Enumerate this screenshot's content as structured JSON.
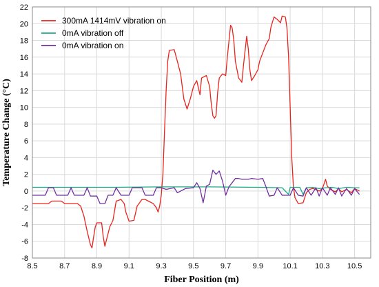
{
  "chart_data": {
    "type": "line",
    "title": "",
    "xlabel": "Fiber Position (m)",
    "ylabel": "Temperature Change (°C)",
    "xlim": [
      8.5,
      10.6
    ],
    "ylim": [
      -8,
      22
    ],
    "xticks": [
      "8.5",
      "8.7",
      "8.9",
      "9.1",
      "9.3",
      "9.5",
      "9.7",
      "9.9",
      "10.1",
      "10.3",
      "10.5"
    ],
    "yticks": [
      "-8",
      "-6",
      "-4",
      "-2",
      "0",
      "2",
      "4",
      "6",
      "8",
      "10",
      "12",
      "14",
      "16",
      "18",
      "20",
      "22"
    ],
    "grid": true,
    "legend_position": "top-left",
    "series": [
      {
        "name": "300mA 1414mV vibration on",
        "color": "#e8231c",
        "points": [
          [
            8.5,
            -1.5
          ],
          [
            8.6,
            -1.5
          ],
          [
            8.62,
            -1.2
          ],
          [
            8.68,
            -1.2
          ],
          [
            8.7,
            -1.5
          ],
          [
            8.78,
            -1.5
          ],
          [
            8.8,
            -1.8
          ],
          [
            8.82,
            -3.0
          ],
          [
            8.84,
            -4.8
          ],
          [
            8.86,
            -6.4
          ],
          [
            8.87,
            -6.8
          ],
          [
            8.88,
            -5.5
          ],
          [
            8.89,
            -4.3
          ],
          [
            8.9,
            -3.8
          ],
          [
            8.93,
            -3.8
          ],
          [
            8.94,
            -5.5
          ],
          [
            8.95,
            -6.6
          ],
          [
            8.96,
            -5.8
          ],
          [
            8.98,
            -4.3
          ],
          [
            9.0,
            -3.5
          ],
          [
            9.02,
            -1.2
          ],
          [
            9.05,
            -1.0
          ],
          [
            9.07,
            -1.5
          ],
          [
            9.08,
            -2.5
          ],
          [
            9.1,
            -3.6
          ],
          [
            9.13,
            -3.5
          ],
          [
            9.15,
            -1.8
          ],
          [
            9.18,
            -1.0
          ],
          [
            9.2,
            -1.0
          ],
          [
            9.22,
            -1.2
          ],
          [
            9.25,
            -1.5
          ],
          [
            9.27,
            -2.0
          ],
          [
            9.28,
            -2.5
          ],
          [
            9.29,
            -1.8
          ],
          [
            9.3,
            -0.5
          ],
          [
            9.31,
            2.0
          ],
          [
            9.32,
            7.0
          ],
          [
            9.33,
            12.0
          ],
          [
            9.34,
            15.5
          ],
          [
            9.35,
            16.8
          ],
          [
            9.38,
            16.9
          ],
          [
            9.4,
            15.5
          ],
          [
            9.42,
            14.0
          ],
          [
            9.44,
            11.0
          ],
          [
            9.46,
            9.8
          ],
          [
            9.48,
            11.0
          ],
          [
            9.5,
            12.5
          ],
          [
            9.52,
            13.2
          ],
          [
            9.54,
            11.5
          ],
          [
            9.55,
            13.5
          ],
          [
            9.58,
            13.8
          ],
          [
            9.6,
            12.5
          ],
          [
            9.61,
            10.5
          ],
          [
            9.62,
            9.0
          ],
          [
            9.63,
            8.7
          ],
          [
            9.64,
            9.0
          ],
          [
            9.65,
            11.8
          ],
          [
            9.66,
            13.5
          ],
          [
            9.68,
            14.0
          ],
          [
            9.7,
            13.8
          ],
          [
            9.71,
            16.0
          ],
          [
            9.73,
            19.8
          ],
          [
            9.74,
            19.5
          ],
          [
            9.75,
            18.0
          ],
          [
            9.76,
            15.5
          ],
          [
            9.78,
            13.5
          ],
          [
            9.8,
            13.0
          ],
          [
            9.81,
            15.0
          ],
          [
            9.83,
            18.5
          ],
          [
            9.84,
            17.0
          ],
          [
            9.85,
            14.5
          ],
          [
            9.86,
            13.2
          ],
          [
            9.88,
            13.8
          ],
          [
            9.9,
            14.5
          ],
          [
            9.91,
            15.5
          ],
          [
            9.93,
            16.5
          ],
          [
            9.95,
            17.5
          ],
          [
            9.97,
            18.2
          ],
          [
            9.98,
            19.5
          ],
          [
            9.99,
            20.2
          ],
          [
            10.0,
            20.8
          ],
          [
            10.02,
            20.5
          ],
          [
            10.04,
            20.1
          ],
          [
            10.05,
            20.9
          ],
          [
            10.07,
            20.8
          ],
          [
            10.08,
            19.5
          ],
          [
            10.09,
            16.0
          ],
          [
            10.1,
            10.0
          ],
          [
            10.11,
            4.0
          ],
          [
            10.12,
            0.5
          ],
          [
            10.13,
            -0.8
          ],
          [
            10.15,
            -1.5
          ],
          [
            10.18,
            -1.4
          ],
          [
            10.2,
            -0.2
          ],
          [
            10.22,
            0.2
          ],
          [
            10.24,
            0.3
          ],
          [
            10.26,
            0.2
          ],
          [
            10.28,
            0.0
          ],
          [
            10.3,
            0.3
          ],
          [
            10.32,
            1.4
          ],
          [
            10.33,
            0.6
          ],
          [
            10.35,
            0.2
          ],
          [
            10.38,
            -0.1
          ],
          [
            10.4,
            0.3
          ],
          [
            10.42,
            -0.1
          ],
          [
            10.45,
            0.2
          ],
          [
            10.48,
            -0.2
          ],
          [
            10.5,
            0.3
          ],
          [
            10.53,
            0.0
          ]
        ]
      },
      {
        "name": "0mA vibration off",
        "color": "#1aaa85",
        "points": [
          [
            8.5,
            0.45
          ],
          [
            9.0,
            0.45
          ],
          [
            9.3,
            0.5
          ],
          [
            9.6,
            0.5
          ],
          [
            9.9,
            0.45
          ],
          [
            10.05,
            0.4
          ],
          [
            10.09,
            -0.4
          ],
          [
            10.1,
            0.45
          ],
          [
            10.16,
            0.45
          ],
          [
            10.18,
            -0.4
          ],
          [
            10.2,
            0.4
          ],
          [
            10.24,
            0.45
          ],
          [
            10.28,
            0.3
          ],
          [
            10.32,
            0.4
          ],
          [
            10.36,
            0.45
          ],
          [
            10.4,
            0.3
          ],
          [
            10.45,
            0.45
          ],
          [
            10.5,
            0.4
          ],
          [
            10.53,
            0.4
          ]
        ]
      },
      {
        "name": "0mA vibration on",
        "color": "#7030a0",
        "points": [
          [
            8.5,
            -0.5
          ],
          [
            8.58,
            -0.5
          ],
          [
            8.6,
            0.4
          ],
          [
            8.63,
            0.4
          ],
          [
            8.65,
            -0.5
          ],
          [
            8.72,
            -0.5
          ],
          [
            8.74,
            0.4
          ],
          [
            8.76,
            -0.5
          ],
          [
            8.82,
            -0.5
          ],
          [
            8.84,
            0.4
          ],
          [
            8.86,
            -0.6
          ],
          [
            8.9,
            -0.6
          ],
          [
            8.92,
            -1.5
          ],
          [
            8.95,
            -1.5
          ],
          [
            8.97,
            -0.5
          ],
          [
            9.0,
            -0.5
          ],
          [
            9.02,
            0.4
          ],
          [
            9.05,
            -0.5
          ],
          [
            9.1,
            -0.5
          ],
          [
            9.12,
            0.4
          ],
          [
            9.18,
            0.4
          ],
          [
            9.2,
            -0.5
          ],
          [
            9.25,
            -0.5
          ],
          [
            9.27,
            0.4
          ],
          [
            9.3,
            0.4
          ],
          [
            9.33,
            0.2
          ],
          [
            9.38,
            0.4
          ],
          [
            9.4,
            -0.2
          ],
          [
            9.45,
            0.3
          ],
          [
            9.5,
            0.4
          ],
          [
            9.52,
            1.0
          ],
          [
            9.54,
            0.3
          ],
          [
            9.56,
            -1.4
          ],
          [
            9.57,
            -0.4
          ],
          [
            9.58,
            0.6
          ],
          [
            9.6,
            0.8
          ],
          [
            9.62,
            2.5
          ],
          [
            9.64,
            2.0
          ],
          [
            9.66,
            2.4
          ],
          [
            9.68,
            1.2
          ],
          [
            9.7,
            -0.5
          ],
          [
            9.72,
            0.5
          ],
          [
            9.74,
            1.0
          ],
          [
            9.76,
            1.5
          ],
          [
            9.78,
            1.5
          ],
          [
            9.8,
            1.4
          ],
          [
            9.84,
            1.4
          ],
          [
            9.86,
            1.5
          ],
          [
            9.9,
            1.4
          ],
          [
            9.93,
            1.5
          ],
          [
            9.95,
            0.5
          ],
          [
            9.97,
            -0.6
          ],
          [
            10.0,
            -0.5
          ],
          [
            10.02,
            0.4
          ],
          [
            10.05,
            -0.5
          ],
          [
            10.1,
            -0.5
          ],
          [
            10.12,
            0.4
          ],
          [
            10.15,
            -0.5
          ],
          [
            10.18,
            -0.6
          ],
          [
            10.2,
            0.4
          ],
          [
            10.23,
            -0.5
          ],
          [
            10.26,
            0.4
          ],
          [
            10.28,
            -0.6
          ],
          [
            10.3,
            0.4
          ],
          [
            10.33,
            -0.5
          ],
          [
            10.35,
            0.4
          ],
          [
            10.38,
            -0.4
          ],
          [
            10.4,
            0.4
          ],
          [
            10.42,
            -0.6
          ],
          [
            10.45,
            0.3
          ],
          [
            10.48,
            -0.5
          ],
          [
            10.5,
            0.3
          ],
          [
            10.53,
            -0.4
          ]
        ]
      }
    ]
  }
}
